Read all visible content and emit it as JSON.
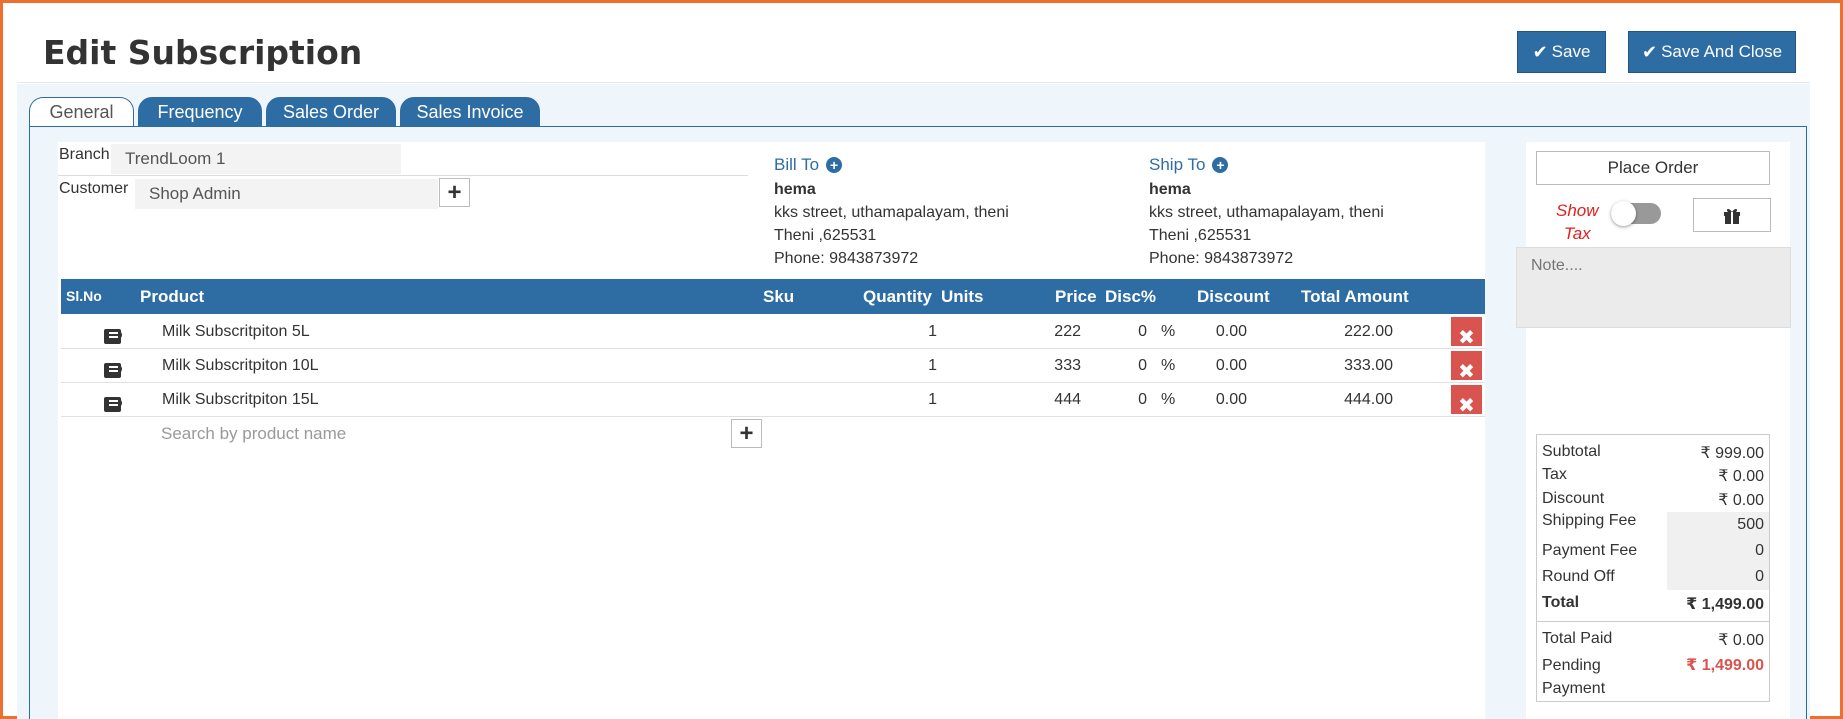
{
  "header": {
    "title": "Edit Subscription",
    "save_label": "Save",
    "save_close_label": "Save And Close"
  },
  "tabs": [
    {
      "label": "General",
      "active": true
    },
    {
      "label": "Frequency"
    },
    {
      "label": "Sales Order"
    },
    {
      "label": "Sales Invoice"
    }
  ],
  "form": {
    "branch_label": "Branch",
    "branch_value": "TrendLoom 1",
    "customer_label": "Customer",
    "customer_value": "Shop Admin"
  },
  "bill_to": {
    "title": "Bill To",
    "name": "hema",
    "street": "kks street, uthamapalayam, theni",
    "city": "Theni ,625531",
    "phone": "Phone: 9843873972"
  },
  "ship_to": {
    "title": "Ship To",
    "name": "hema",
    "street": "kks street, uthamapalayam, theni",
    "city": "Theni ,625531",
    "phone": "Phone: 9843873972"
  },
  "table": {
    "headers": {
      "slno": "Sl.No",
      "product": "Product",
      "sku": "Sku",
      "quantity": "Quantity",
      "units": "Units",
      "price": "Price",
      "disc_pct": "Disc%",
      "discount": "Discount",
      "total": "Total Amount"
    },
    "rows": [
      {
        "product": "Milk Subscritpiton 5L",
        "quantity": "1",
        "price": "222",
        "disc": "0",
        "pct": "%",
        "discount": "0.00",
        "total": "222.00"
      },
      {
        "product": "Milk Subscritpiton 10L",
        "quantity": "1",
        "price": "333",
        "disc": "0",
        "pct": "%",
        "discount": "0.00",
        "total": "333.00"
      },
      {
        "product": "Milk Subscritpiton 15L",
        "quantity": "1",
        "price": "444",
        "disc": "0",
        "pct": "%",
        "discount": "0.00",
        "total": "444.00"
      }
    ],
    "search_placeholder": "Search by product name"
  },
  "side": {
    "place_order_label": "Place Order",
    "show_tax_line1": "Show",
    "show_tax_line2": "Tax",
    "show_tax_on": false,
    "note_placeholder": "Note....",
    "totals": {
      "subtotal_label": "Subtotal",
      "subtotal": "₹ 999.00",
      "tax_label": "Tax",
      "tax": "₹ 0.00",
      "discount_label": "Discount",
      "discount": "₹ 0.00",
      "shipping_label": "Shipping Fee",
      "shipping": "500",
      "payment_fee_label": "Payment Fee",
      "payment_fee": "0",
      "round_off_label": "Round Off",
      "round_off": "0",
      "total_label": "Total",
      "total": "₹ 1,499.00",
      "paid_label": "Total Paid",
      "paid": "₹ 0.00",
      "pending_label_1": "Pending",
      "pending_label_2": "Payment",
      "pending": "₹ 1,499.00"
    }
  },
  "colors": {
    "primary": "#2e6da4",
    "danger": "#d9534f",
    "frame": "#ee6f2d"
  }
}
